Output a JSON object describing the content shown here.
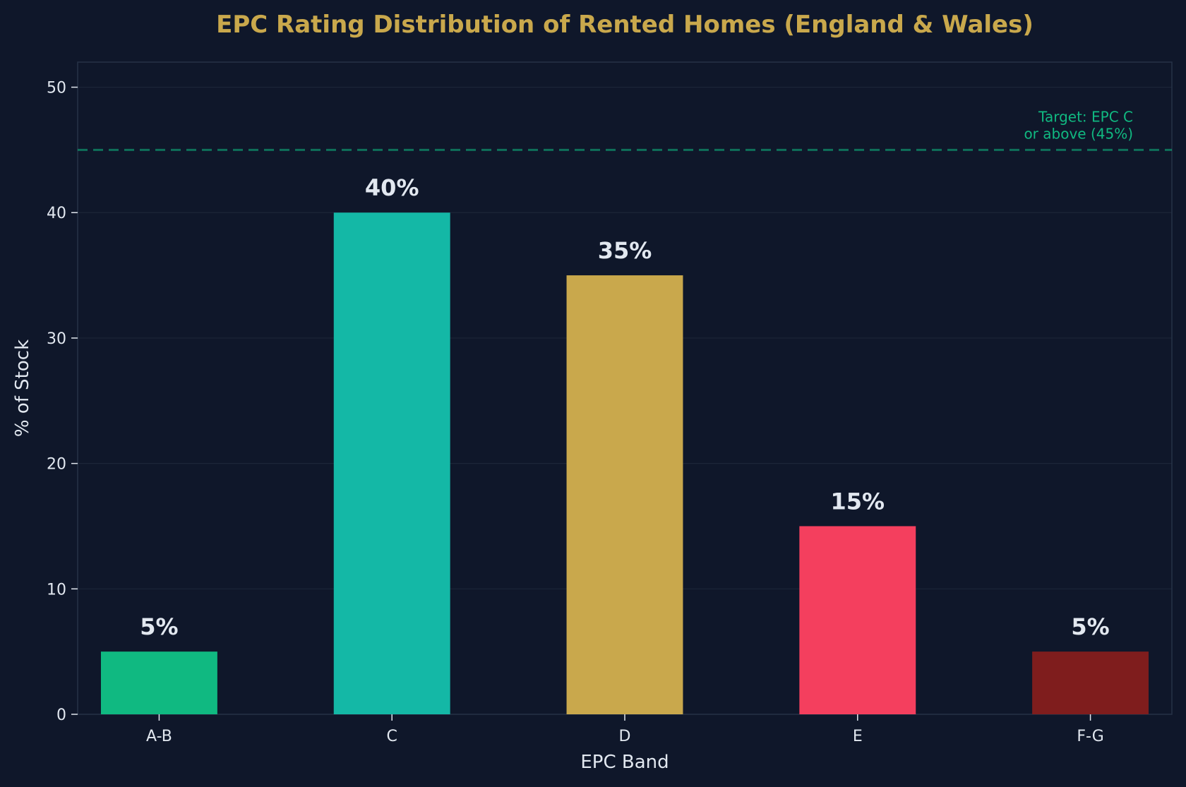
{
  "chart_data": {
    "type": "bar",
    "title": "EPC Rating Distribution of Rented Homes (England & Wales)",
    "xlabel": "EPC Band",
    "ylabel": "% of Stock",
    "categories": [
      "A-B",
      "C",
      "D",
      "E",
      "F-G"
    ],
    "values": [
      5,
      40,
      35,
      15,
      5
    ],
    "data_labels": [
      "5%",
      "40%",
      "35%",
      "15%",
      "5%"
    ],
    "colors": [
      "#10b981",
      "#14b8a6",
      "#c9a84c",
      "#f43f5e",
      "#7f1d1d"
    ],
    "ylim": [
      0,
      52
    ],
    "yticks": [
      0,
      10,
      20,
      30,
      40,
      50
    ],
    "grid": true,
    "reference_line": {
      "value": 45,
      "label_line1": "Target: EPC C",
      "label_line2": "or above (45%)",
      "color": "#10b981"
    },
    "background": "#0f172a",
    "title_color": "#c9a84c",
    "text_color": "#e2e8f0"
  }
}
